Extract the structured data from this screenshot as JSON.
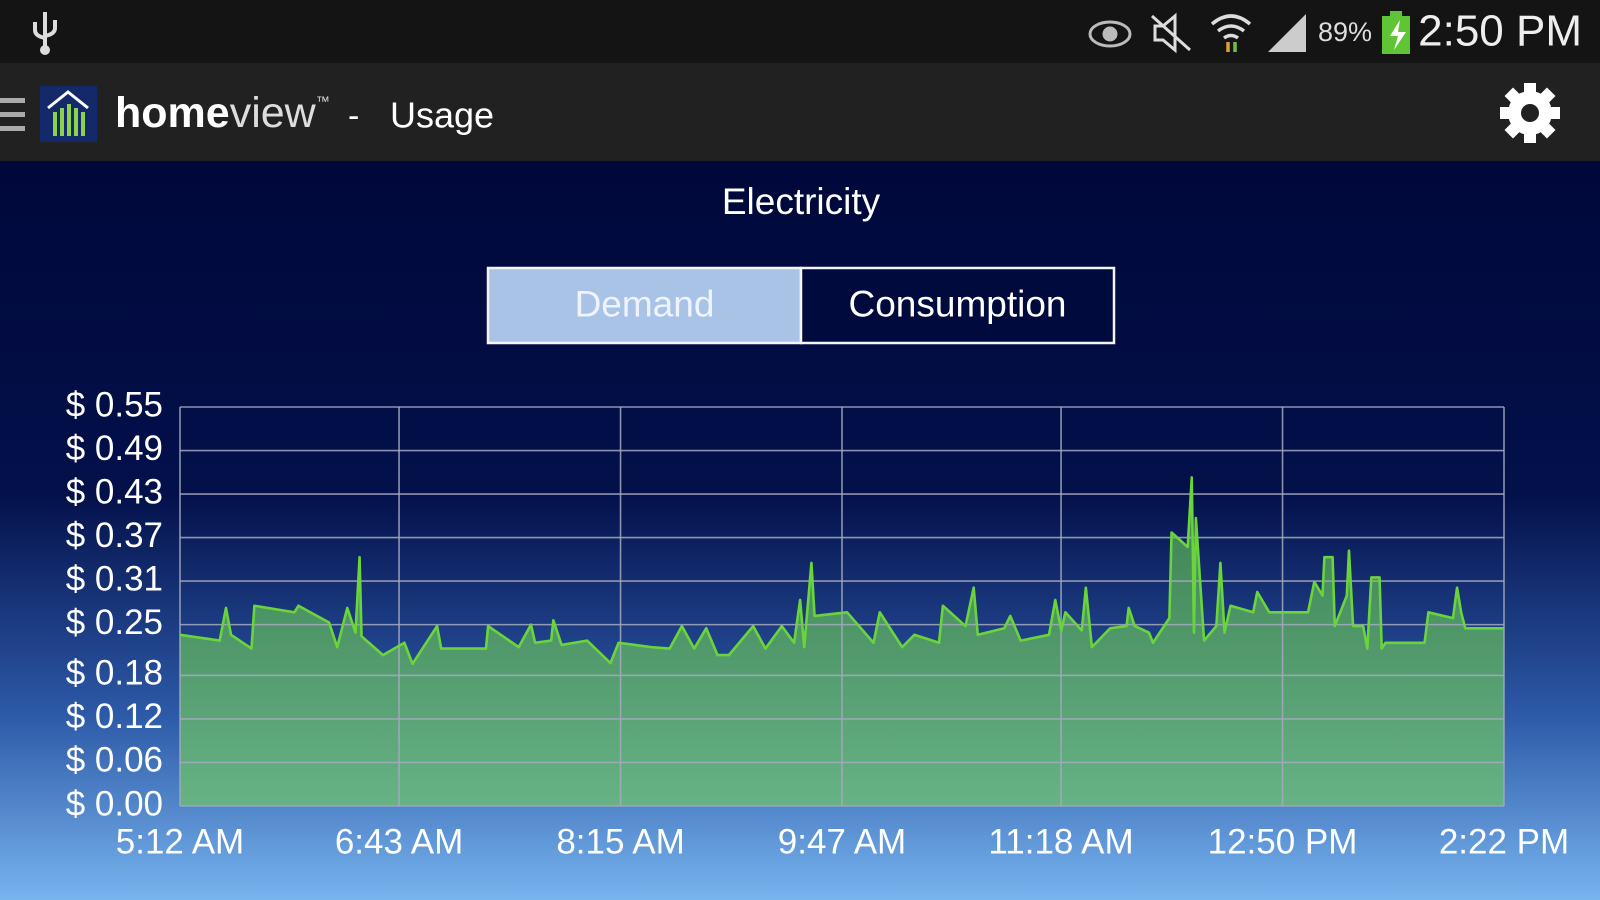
{
  "status_bar": {
    "battery": "89%",
    "time": "2:50 PM"
  },
  "app_bar": {
    "brand_bold": "home",
    "brand_light": "view",
    "trademark": "™",
    "separator": "-",
    "screen": "Usage"
  },
  "tabs": [
    {
      "label": "Demand",
      "selected": true
    },
    {
      "label": "Consumption",
      "selected": false
    }
  ],
  "chart_data": {
    "type": "area",
    "title": "Electricity",
    "color": "#6ad43a",
    "fill": "#4f9a62",
    "grid": true,
    "x": [
      312,
      328.5,
      331.1,
      333.2,
      341.7,
      342.9,
      359.5,
      361.2,
      373.9,
      377.3,
      381.5,
      384.9,
      386.6,
      387.4,
      396.3,
      405.2,
      408.6,
      418.8,
      420.5,
      439.1,
      440.0,
      452.7,
      457.8,
      459.5,
      466.2,
      467.1,
      470.5,
      481.1,
      490.8,
      494.2,
      507.8,
      515.4,
      520.5,
      525.6,
      530.6,
      535.3,
      540.0,
      550.1,
      555.2,
      562.0,
      567.1,
      569.6,
      571.3,
      574.3,
      575.6,
      589.1,
      600.1,
      602.7,
      612.0,
      617.1,
      627.3,
      628.9,
      638.3,
      641.7,
      643.4,
      654.4,
      656.9,
      661.2,
      673.0,
      675.6,
      678.1,
      679.8,
      686.6,
      688.3,
      690.8,
      698.4,
      705.2,
      706.1,
      708.6,
      714.5,
      716.2,
      723.0,
      723.9,
      730.6,
      732.3,
      733.2,
      734.0,
      737.4,
      742.5,
      744.2,
      745.9,
      748.4,
      757.8,
      759.5,
      764.5,
      780.6,
      783.2,
      786.6,
      787.4,
      790.8,
      791.7,
      796.7,
      797.6,
      799.3,
      803.5,
      805.2,
      806.9,
      810.3,
      811.2,
      812.8,
      829.0,
      830.6,
      840.8,
      842.5,
      844.2,
      845.9,
      862.0
    ],
    "values": [
      0.236,
      0.228,
      0.273,
      0.236,
      0.217,
      0.276,
      0.267,
      0.276,
      0.253,
      0.219,
      0.273,
      0.239,
      0.343,
      0.234,
      0.208,
      0.225,
      0.196,
      0.248,
      0.217,
      0.217,
      0.248,
      0.219,
      0.25,
      0.225,
      0.228,
      0.256,
      0.222,
      0.228,
      0.197,
      0.225,
      0.219,
      0.217,
      0.248,
      0.217,
      0.245,
      0.208,
      0.208,
      0.248,
      0.217,
      0.248,
      0.225,
      0.284,
      0.219,
      0.335,
      0.262,
      0.267,
      0.225,
      0.267,
      0.219,
      0.236,
      0.225,
      0.276,
      0.248,
      0.301,
      0.236,
      0.245,
      0.262,
      0.228,
      0.236,
      0.284,
      0.242,
      0.267,
      0.242,
      0.301,
      0.219,
      0.245,
      0.248,
      0.273,
      0.248,
      0.239,
      0.225,
      0.259,
      0.377,
      0.357,
      0.453,
      0.239,
      0.397,
      0.228,
      0.248,
      0.335,
      0.239,
      0.276,
      0.267,
      0.295,
      0.267,
      0.267,
      0.309,
      0.29,
      0.343,
      0.343,
      0.248,
      0.29,
      0.352,
      0.248,
      0.248,
      0.217,
      0.315,
      0.315,
      0.217,
      0.225,
      0.225,
      0.267,
      0.259,
      0.301,
      0.267,
      0.245,
      0.245
    ],
    "xlim": [
      312,
      862
    ],
    "xticks": [
      {
        "value": 312,
        "label": "5:12 AM"
      },
      {
        "value": 403,
        "label": "6:43 AM"
      },
      {
        "value": 495,
        "label": "8:15 AM"
      },
      {
        "value": 587,
        "label": "9:47 AM"
      },
      {
        "value": 678,
        "label": "11:18 AM"
      },
      {
        "value": 770,
        "label": "12:50 PM"
      },
      {
        "value": 862,
        "label": "2:22 PM"
      }
    ],
    "ylim": [
      0,
      0.55
    ],
    "yticks": [
      {
        "value": 0,
        "label": "$ 0.00"
      },
      {
        "value": 0.06,
        "label": "$ 0.06"
      },
      {
        "value": 0.12,
        "label": "$ 0.12"
      },
      {
        "value": 0.18,
        "label": "$ 0.18"
      },
      {
        "value": 0.25,
        "label": "$ 0.25"
      },
      {
        "value": 0.31,
        "label": "$ 0.31"
      },
      {
        "value": 0.37,
        "label": "$ 0.37"
      },
      {
        "value": 0.43,
        "label": "$ 0.43"
      },
      {
        "value": 0.49,
        "label": "$ 0.49"
      },
      {
        "value": 0.55,
        "label": "$ 0.55"
      }
    ]
  }
}
